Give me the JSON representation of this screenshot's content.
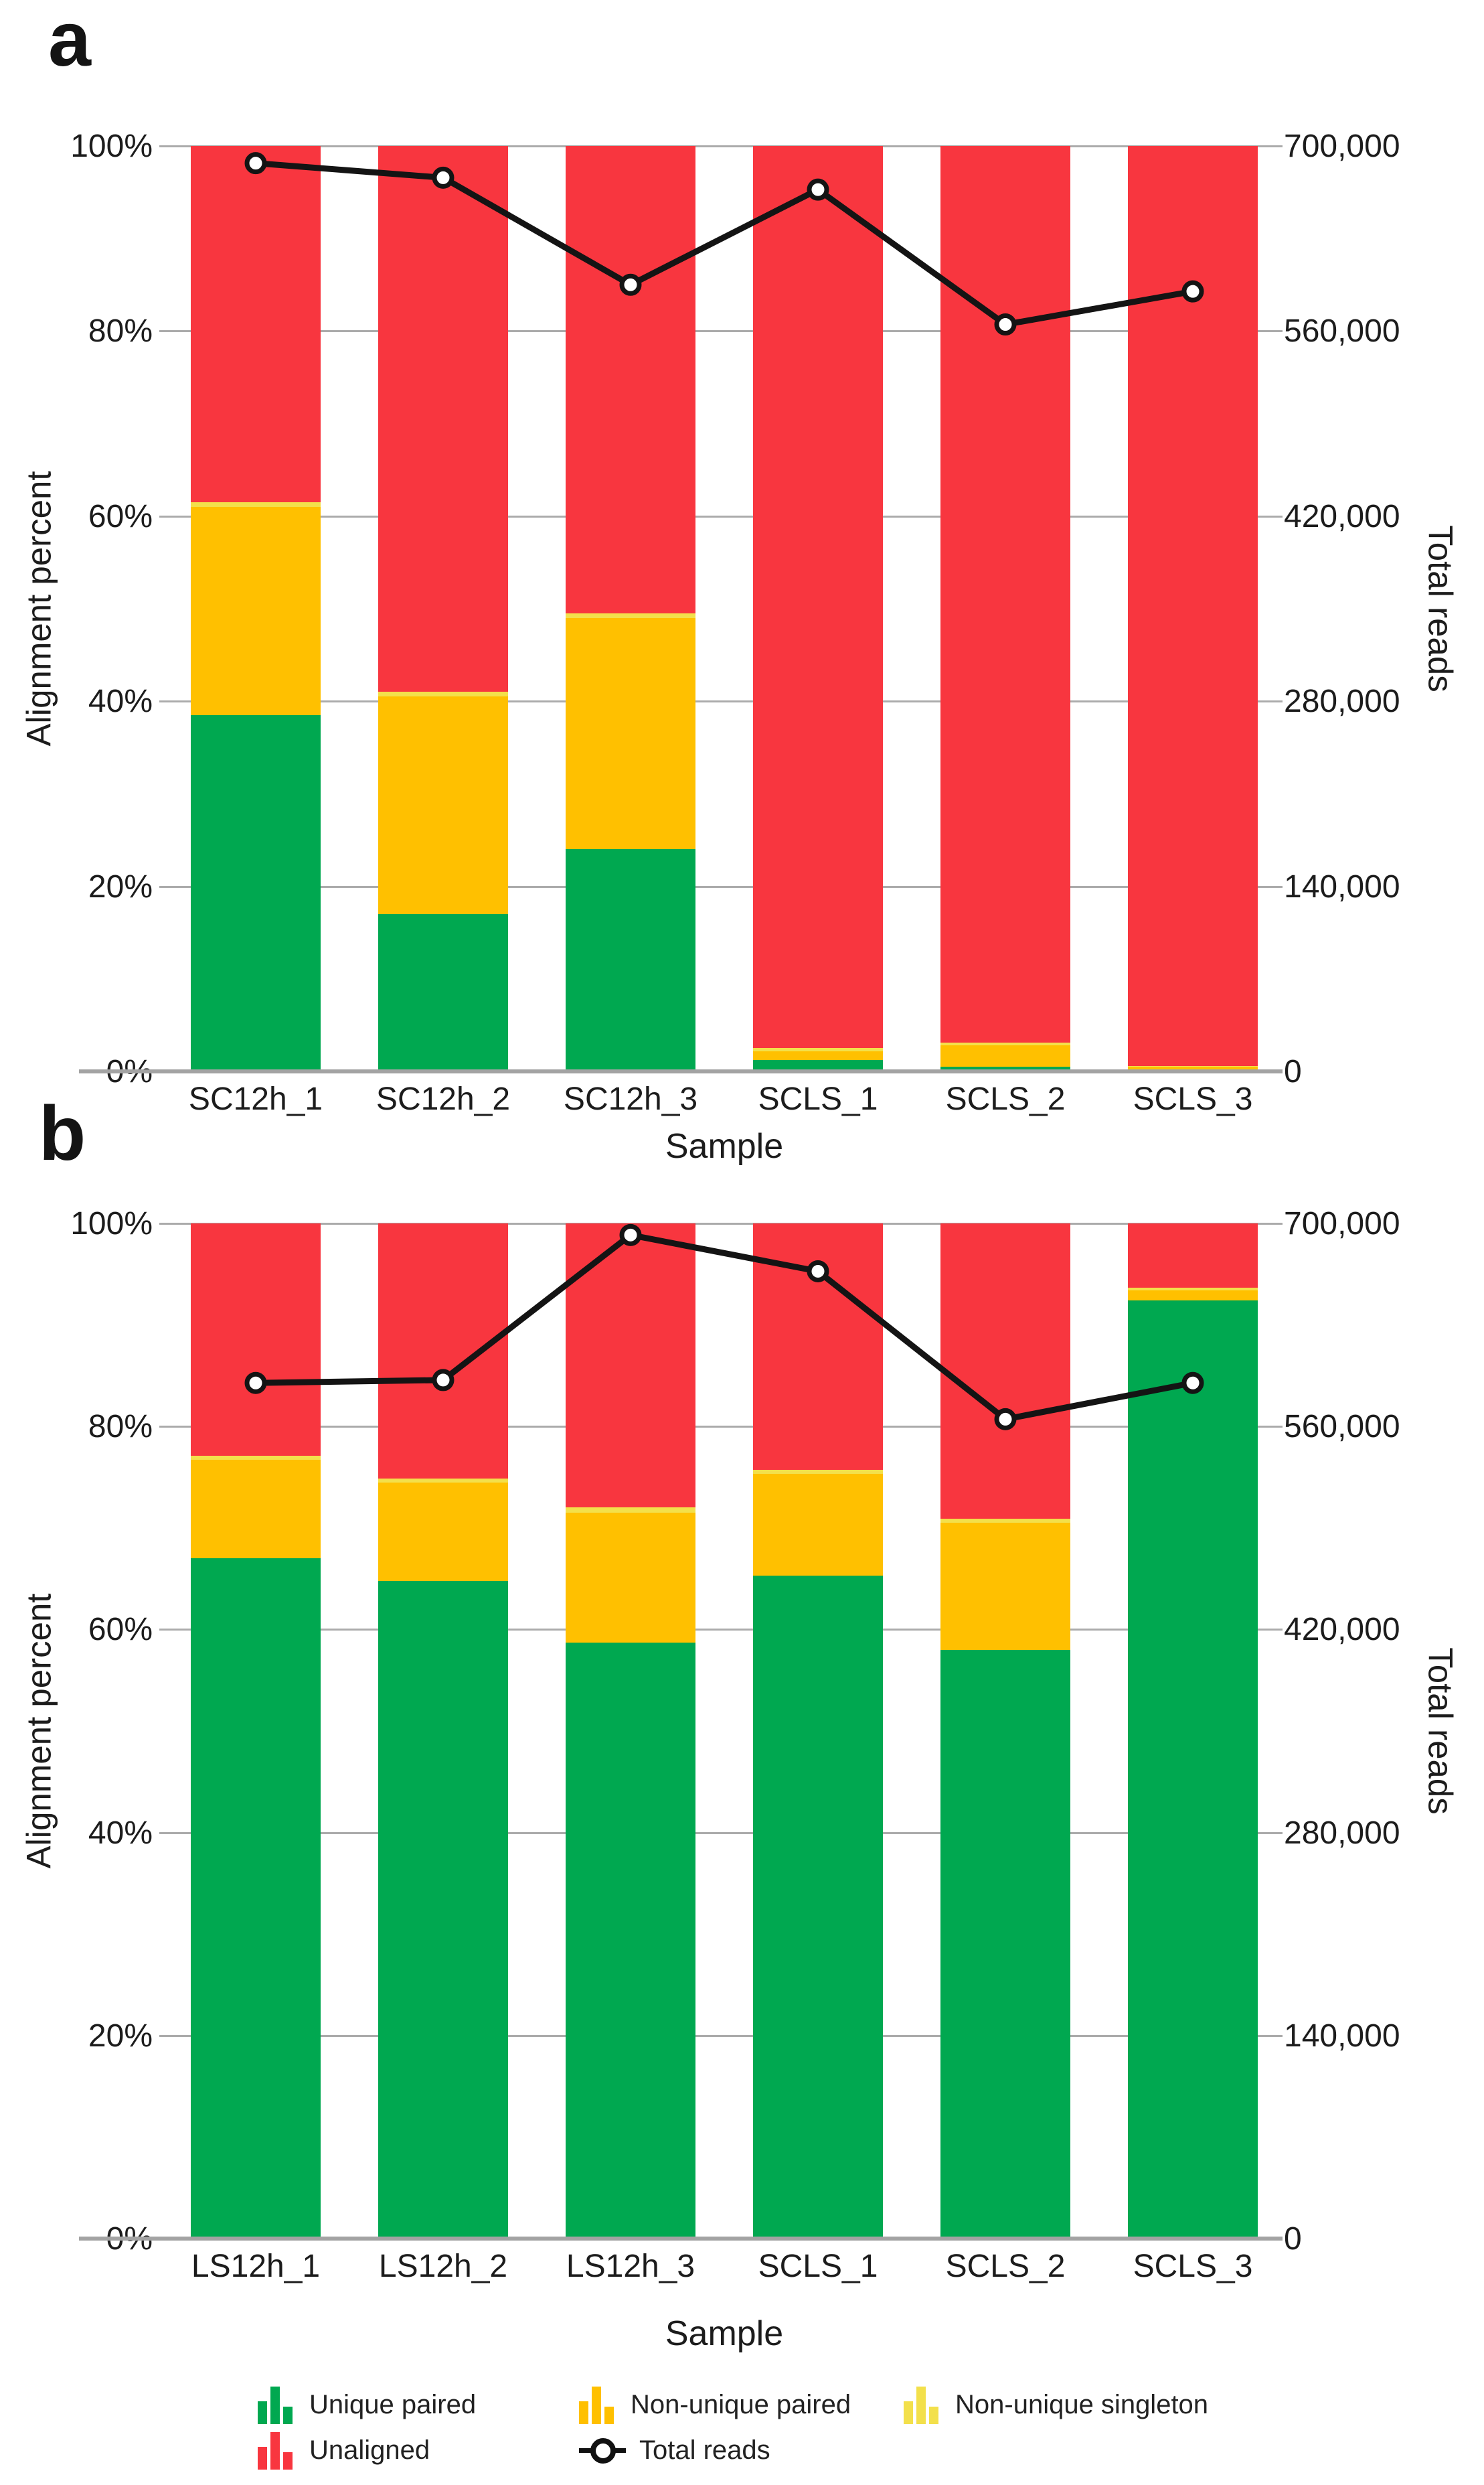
{
  "panels": {
    "a": {
      "letter": "a"
    },
    "b": {
      "letter": "b"
    }
  },
  "chart_data": [
    {
      "type": "bar",
      "subtype": "stacked-percent-with-line",
      "panel": "a",
      "categories": [
        "SC12h_1",
        "SC12h_2",
        "SC12h_3",
        "SCLS_1",
        "SCLS_2",
        "SCLS_3"
      ],
      "series": [
        {
          "name": "Unique paired",
          "color": "#00a850",
          "values": [
            38.5,
            17.0,
            24.0,
            1.2,
            0.5,
            0.2
          ]
        },
        {
          "name": "Non-unique paired",
          "color": "#ffc000",
          "values": [
            22.5,
            23.5,
            25.0,
            1.0,
            2.3,
            0.3
          ]
        },
        {
          "name": "Non-unique singleton",
          "color": "#f3e04b",
          "values": [
            0.5,
            0.5,
            0.5,
            0.3,
            0.3,
            0.1
          ]
        },
        {
          "name": "Unaligned",
          "color": "#f8363f",
          "values": [
            38.5,
            59.0,
            50.5,
            97.5,
            96.9,
            99.4
          ]
        }
      ],
      "line_series": {
        "name": "Total reads",
        "color": "#141414",
        "values": [
          687000,
          676000,
          595000,
          667000,
          565000,
          590000
        ]
      },
      "xlabel": "Sample",
      "ylabel_left": "Alignment percent",
      "ylabel_right": "Total reads",
      "yticks_left": [
        "0%",
        "20%",
        "40%",
        "60%",
        "80%",
        "100%"
      ],
      "yticks_right": [
        "0",
        "140,000",
        "280,000",
        "420,000",
        "560,000",
        "700,000"
      ],
      "ylim_left": [
        0,
        100
      ],
      "ylim_right": [
        0,
        700000
      ],
      "grid": true,
      "legend_position": "bottom"
    },
    {
      "type": "bar",
      "subtype": "stacked-percent-with-line",
      "panel": "b",
      "categories": [
        "LS12h_1",
        "LS12h_2",
        "LS12h_3",
        "SCLS_1",
        "SCLS_2",
        "SCLS_3"
      ],
      "series": [
        {
          "name": "Unique paired",
          "color": "#00a850",
          "values": [
            67.0,
            64.8,
            58.7,
            65.3,
            58.0,
            92.4
          ]
        },
        {
          "name": "Non-unique paired",
          "color": "#ffc000",
          "values": [
            9.7,
            9.7,
            12.8,
            10.0,
            12.5,
            1.0
          ]
        },
        {
          "name": "Non-unique singleton",
          "color": "#f3e04b",
          "values": [
            0.4,
            0.4,
            0.5,
            0.4,
            0.4,
            0.3
          ]
        },
        {
          "name": "Unaligned",
          "color": "#f8363f",
          "values": [
            22.9,
            25.1,
            28.0,
            24.3,
            29.1,
            6.3
          ]
        }
      ],
      "line_series": {
        "name": "Total reads",
        "color": "#141414",
        "values": [
          590000,
          592000,
          692000,
          667000,
          565000,
          590000
        ]
      },
      "xlabel": "Sample",
      "ylabel_left": "Alignment percent",
      "ylabel_right": "Total reads",
      "yticks_left": [
        "0%",
        "20%",
        "40%",
        "60%",
        "80%",
        "100%"
      ],
      "yticks_right": [
        "0",
        "140,000",
        "280,000",
        "420,000",
        "560,000",
        "700,000"
      ],
      "ylim_left": [
        0,
        100
      ],
      "ylim_right": [
        0,
        700000
      ],
      "grid": true,
      "legend_position": "bottom"
    }
  ],
  "legend": {
    "rows": [
      [
        {
          "label": "Unique paired",
          "color": "#00a850",
          "icon": "bars"
        },
        {
          "label": "Non-unique paired",
          "color": "#ffc000",
          "icon": "bars"
        },
        {
          "label": "Non-unique singleton",
          "color": "#f3e04b",
          "icon": "bars"
        }
      ],
      [
        {
          "label": "Unaligned",
          "color": "#f8363f",
          "icon": "bars"
        },
        {
          "label": "Total reads",
          "color": "#141414",
          "icon": "marker"
        }
      ]
    ]
  }
}
